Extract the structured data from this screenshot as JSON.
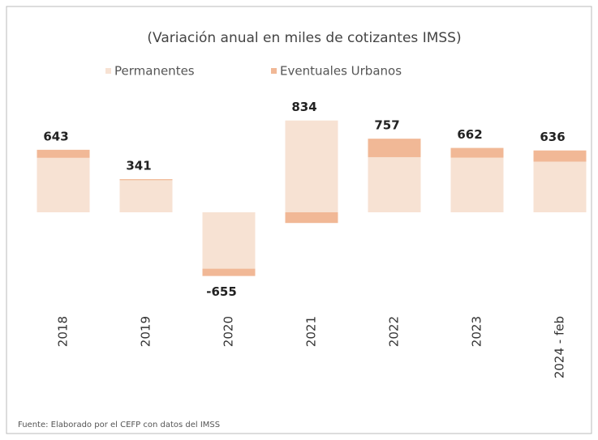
{
  "chart_data": {
    "type": "bar",
    "stacked": true,
    "title": "(Variación anual en miles de cotizantes IMSS)",
    "categories": [
      "2018",
      "2019",
      "2020",
      "2021",
      "2022",
      "2023",
      "2024 - feb"
    ],
    "series": [
      {
        "name": "Permanentes",
        "color": "#f7e2d3",
        "values": [
          560,
          330,
          -580,
          944,
          567,
          562,
          521
        ]
      },
      {
        "name": "Eventuales Urbanos",
        "color": "#f1b896",
        "values": [
          83,
          11,
          -75,
          -110,
          190,
          100,
          115
        ]
      }
    ],
    "totals": [
      643,
      341,
      -655,
      834,
      757,
      662,
      636
    ],
    "ylim": [
      -800,
      1000
    ],
    "source": "Fuente: Elaborado por el CEFP con datos del IMSS"
  }
}
